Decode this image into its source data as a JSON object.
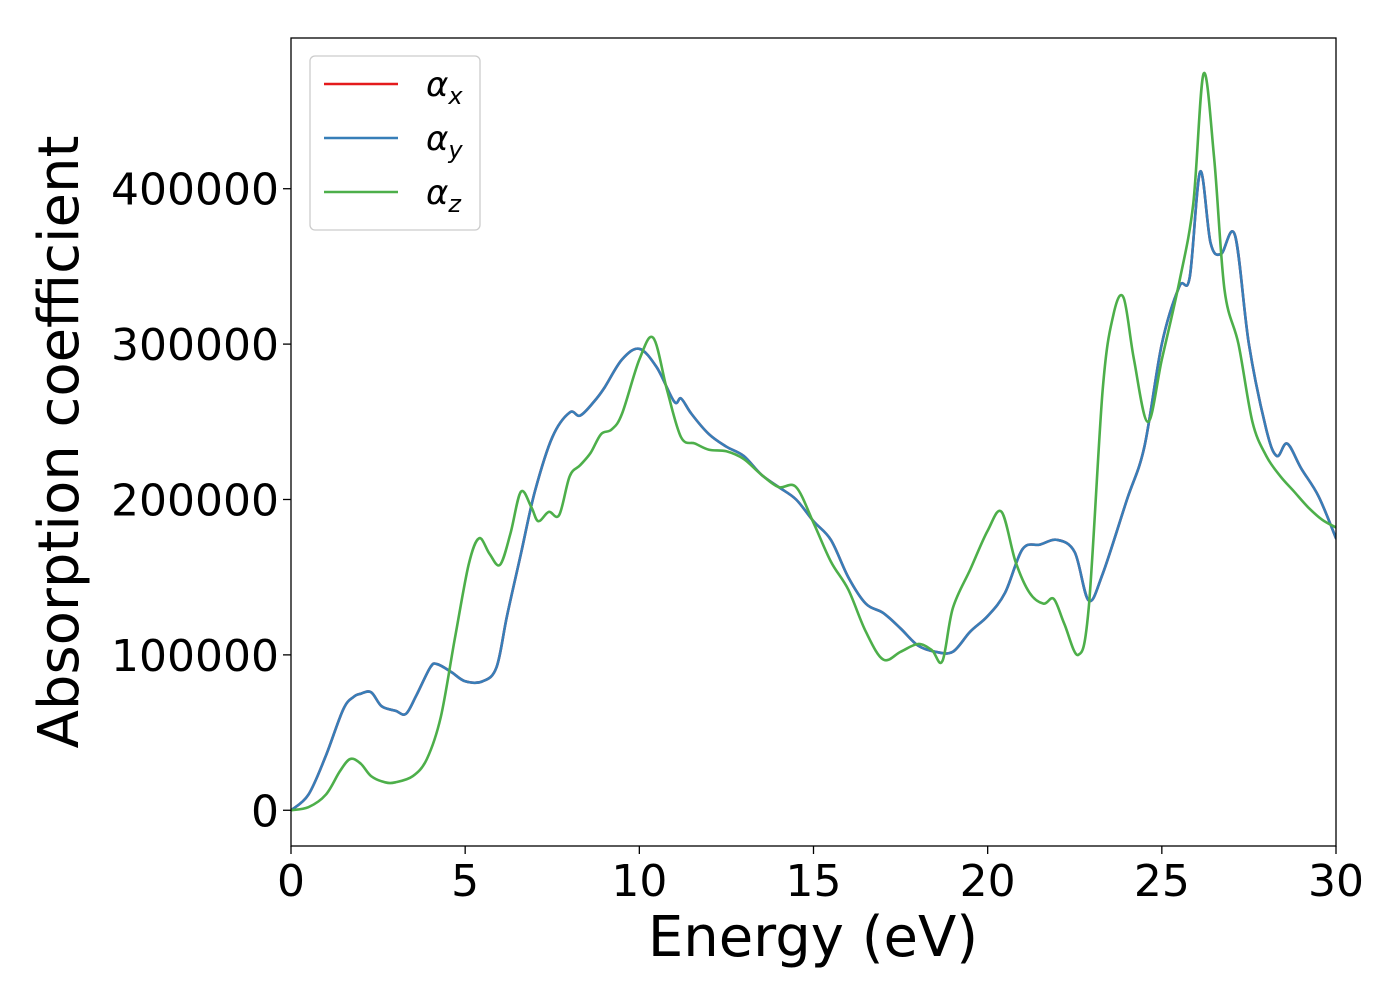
{
  "chart_data": {
    "type": "line",
    "xlabel": "Energy (eV)",
    "ylabel": "Absorption coefficient",
    "xlim": [
      0,
      30
    ],
    "ylim": [
      -23000,
      497000
    ],
    "xticks": [
      0,
      5,
      10,
      15,
      20,
      25,
      30
    ],
    "xtick_labels": [
      "0",
      "5",
      "10",
      "15",
      "20",
      "25",
      "30"
    ],
    "yticks": [
      0,
      100000,
      200000,
      300000,
      400000
    ],
    "ytick_labels": [
      "0",
      "100000",
      "200000",
      "300000",
      "400000"
    ],
    "grid": false,
    "legend_position": "top-left",
    "series": [
      {
        "name": "α",
        "subscript": "x",
        "color": "#e41a1c",
        "x": [
          0,
          0.5,
          1,
          1.5,
          1.8,
          2,
          2.3,
          2.6,
          3,
          3.3,
          3.6,
          4,
          4.2,
          4.6,
          5,
          5.5,
          5.9,
          6.2,
          6.6,
          7,
          7.5,
          8,
          8.3,
          8.7,
          9,
          9.5,
          10,
          10.5,
          11,
          11.2,
          11.5,
          12,
          12.5,
          13,
          13.5,
          14,
          14.5,
          15,
          15.5,
          16,
          16.5,
          17,
          17.5,
          18,
          18.5,
          19,
          19.5,
          20,
          20.5,
          21,
          21.5,
          22,
          22.5,
          22.9,
          23.3,
          24,
          24.5,
          25,
          25.5,
          25.8,
          26.1,
          26.4,
          26.7,
          27.1,
          27.5,
          28,
          28.3,
          28.6,
          29,
          29.5,
          30
        ],
        "y": [
          0,
          10000,
          35000,
          65000,
          73000,
          75000,
          76000,
          67000,
          64000,
          62000,
          74000,
          92000,
          94000,
          89000,
          83000,
          83000,
          92000,
          125000,
          165000,
          205000,
          240000,
          256000,
          254000,
          263000,
          272000,
          290000,
          297000,
          285000,
          263000,
          265000,
          255000,
          242000,
          234000,
          228000,
          216000,
          208000,
          200000,
          186000,
          174000,
          150000,
          133000,
          127000,
          117000,
          106000,
          102000,
          102000,
          115000,
          125000,
          140000,
          168000,
          171000,
          174000,
          166000,
          135000,
          152000,
          200000,
          234000,
          300000,
          337000,
          343000,
          411000,
          365000,
          358000,
          370000,
          300000,
          245000,
          228000,
          236000,
          220000,
          202000,
          175000
        ]
      },
      {
        "name": "α",
        "subscript": "y",
        "color": "#377eb8",
        "x": [
          0,
          0.5,
          1,
          1.5,
          1.8,
          2,
          2.3,
          2.6,
          3,
          3.3,
          3.6,
          4,
          4.2,
          4.6,
          5,
          5.5,
          5.9,
          6.2,
          6.6,
          7,
          7.5,
          8,
          8.3,
          8.7,
          9,
          9.5,
          10,
          10.5,
          11,
          11.2,
          11.5,
          12,
          12.5,
          13,
          13.5,
          14,
          14.5,
          15,
          15.5,
          16,
          16.5,
          17,
          17.5,
          18,
          18.5,
          19,
          19.5,
          20,
          20.5,
          21,
          21.5,
          22,
          22.5,
          22.9,
          23.3,
          24,
          24.5,
          25,
          25.5,
          25.8,
          26.1,
          26.4,
          26.7,
          27.1,
          27.5,
          28,
          28.3,
          28.6,
          29,
          29.5,
          30
        ],
        "y": [
          0,
          10000,
          35000,
          65000,
          73000,
          75000,
          76000,
          67000,
          64000,
          62000,
          74000,
          92000,
          94000,
          89000,
          83000,
          83000,
          92000,
          125000,
          165000,
          205000,
          240000,
          256000,
          254000,
          263000,
          272000,
          290000,
          297000,
          285000,
          263000,
          265000,
          255000,
          242000,
          234000,
          228000,
          216000,
          208000,
          200000,
          186000,
          174000,
          150000,
          133000,
          127000,
          117000,
          106000,
          102000,
          102000,
          115000,
          125000,
          140000,
          168000,
          171000,
          174000,
          166000,
          135000,
          152000,
          200000,
          234000,
          300000,
          337000,
          343000,
          411000,
          365000,
          358000,
          370000,
          300000,
          245000,
          228000,
          236000,
          220000,
          202000,
          175000
        ]
      },
      {
        "name": "α",
        "subscript": "z",
        "color": "#4daf4a",
        "x": [
          0,
          0.5,
          1,
          1.4,
          1.7,
          2,
          2.3,
          2.7,
          3,
          3.5,
          3.9,
          4.3,
          4.7,
          5.1,
          5.4,
          5.7,
          6,
          6.3,
          6.6,
          6.9,
          7.1,
          7.4,
          7.7,
          8,
          8.3,
          8.6,
          8.9,
          9.2,
          9.5,
          10,
          10.4,
          10.8,
          11.2,
          11.6,
          12,
          12.5,
          13,
          13.5,
          14,
          14.5,
          15,
          15.5,
          16,
          16.5,
          17,
          17.5,
          18,
          18.4,
          18.7,
          19,
          19.5,
          20,
          20.4,
          20.8,
          21.2,
          21.6,
          21.9,
          22.2,
          22.6,
          22.9,
          23.3,
          23.6,
          23.9,
          24.2,
          24.6,
          25,
          25.5,
          25.9,
          26.2,
          26.5,
          26.8,
          27.2,
          27.6,
          28,
          28.4,
          28.8,
          29.2,
          29.6,
          30
        ],
        "y": [
          0,
          2000,
          10000,
          25000,
          33000,
          30000,
          22000,
          18000,
          18000,
          22000,
          33000,
          60000,
          110000,
          158000,
          175000,
          165000,
          158000,
          178000,
          205000,
          195000,
          186000,
          192000,
          190000,
          215000,
          222000,
          230000,
          242000,
          245000,
          255000,
          290000,
          304000,
          270000,
          240000,
          236000,
          232000,
          231000,
          226000,
          216000,
          208000,
          208000,
          185000,
          160000,
          142000,
          115000,
          97000,
          102000,
          107000,
          103000,
          96000,
          130000,
          155000,
          180000,
          192000,
          160000,
          140000,
          133000,
          136000,
          120000,
          100000,
          130000,
          270000,
          318000,
          330000,
          290000,
          250000,
          290000,
          340000,
          390000,
          474000,
          420000,
          335000,
          300000,
          250000,
          228000,
          215000,
          205000,
          195000,
          187000,
          182000
        ]
      }
    ]
  }
}
